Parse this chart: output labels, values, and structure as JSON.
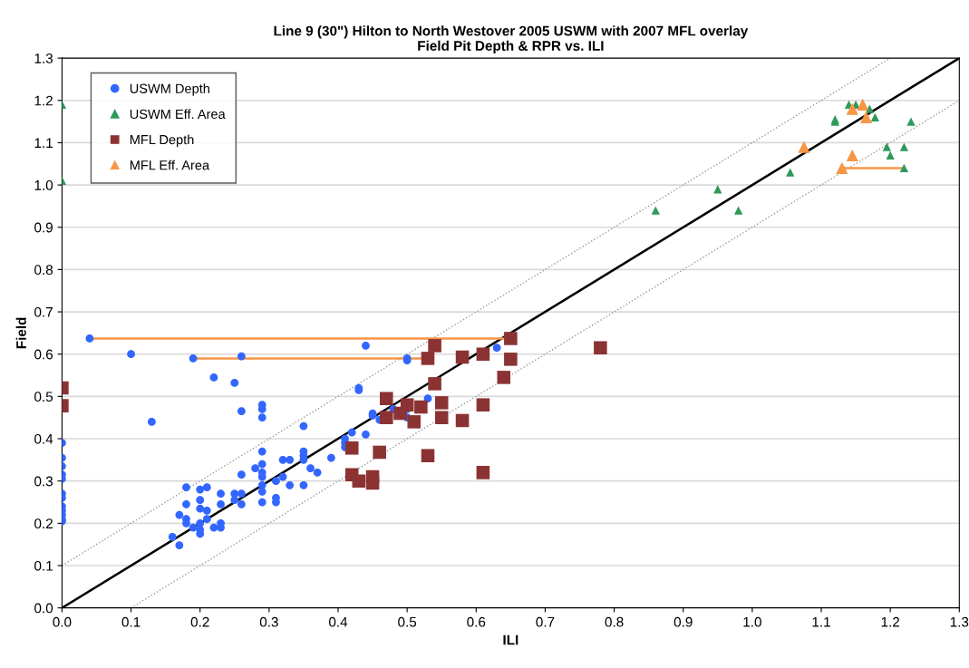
{
  "chart_data": {
    "type": "scatter",
    "title": "Line 9 (30\") Hilton to North Westover 2005 USWM with 2007 MFL overlay\nField Pit Depth & RPR vs. ILI",
    "xlabel": "ILI",
    "ylabel": "Field",
    "xlim": [
      0,
      1.3
    ],
    "ylim": [
      0,
      1.3
    ],
    "xticks": [
      {
        "value": 0,
        "label": "0.0"
      },
      0.1,
      0.2,
      0.3,
      0.4,
      0.5,
      0.6,
      0.7,
      0.8,
      0.9,
      {
        "value": 1,
        "label": "1.0"
      },
      1.1,
      1.2,
      1.3
    ],
    "yticks": [
      {
        "value": 0,
        "label": "0.0"
      },
      0.1,
      0.2,
      0.3,
      0.4,
      0.5,
      0.6,
      0.7,
      0.8,
      0.9,
      {
        "value": 1,
        "label": "1.0"
      },
      1.1,
      1.2,
      1.3
    ],
    "grid": "y",
    "legend": "top left",
    "series": [
      {
        "type": "line",
        "color": "#000000",
        "line_style": "solid",
        "x": [
          0,
          1.3
        ],
        "values": [
          0,
          1.3
        ]
      },
      {
        "type": "line",
        "color": "#999999",
        "line_style": "dotted",
        "x": [
          0,
          1.2
        ],
        "values": [
          0.1,
          1.3
        ]
      },
      {
        "type": "line",
        "color": "#999999",
        "line_style": "dotted",
        "x": [
          0.1,
          1.3
        ],
        "values": [
          0,
          1.2
        ]
      },
      {
        "type": "line",
        "color": "#f79646",
        "line_style": "solid",
        "x": [
          0.04,
          0.65
        ],
        "values": [
          0.637,
          0.637
        ]
      },
      {
        "type": "line",
        "color": "#f79646",
        "line_style": "solid",
        "x": [
          0.19,
          0.53
        ],
        "values": [
          0.59,
          0.59
        ]
      },
      {
        "type": "line",
        "color": "#f79646",
        "line_style": "solid",
        "x": [
          1.22,
          1.13
        ],
        "values": [
          1.04,
          1.04
        ]
      },
      {
        "name": "USWM Depth",
        "marker": "circle",
        "color": "#3366ff",
        "x": [
          0,
          0,
          0,
          0,
          0,
          0,
          0,
          0,
          0,
          0,
          0,
          0,
          0.04,
          0.1,
          0.19,
          0.26,
          0.22,
          0.25,
          0.13,
          0.26,
          0.29,
          0.29,
          0.29,
          0.44,
          0.5,
          0.5,
          0.63,
          0.43,
          0.43,
          0.53,
          0.35,
          0.45,
          0.45,
          0.46,
          0.44,
          0.41,
          0.41,
          0.41,
          0.42,
          0.5,
          0.48,
          0.5,
          0.39,
          0.37,
          0.35,
          0.35,
          0.35,
          0.35,
          0.36,
          0.33,
          0.32,
          0.33,
          0.32,
          0.31,
          0.29,
          0.29,
          0.29,
          0.29,
          0.29,
          0.29,
          0.29,
          0.31,
          0.31,
          0.28,
          0.26,
          0.26,
          0.25,
          0.25,
          0.26,
          0.23,
          0.23,
          0.18,
          0.2,
          0.21,
          0.18,
          0.2,
          0.2,
          0.17,
          0.18,
          0.18,
          0.19,
          0.2,
          0.2,
          0.2,
          0.21,
          0.21,
          0.22,
          0.23,
          0.23,
          0.16,
          0.17
        ],
        "values": [
          0.39,
          0.355,
          0.335,
          0.315,
          0.305,
          0.27,
          0.26,
          0.24,
          0.23,
          0.22,
          0.21,
          0.205,
          0.637,
          0.6,
          0.59,
          0.595,
          0.545,
          0.532,
          0.44,
          0.465,
          0.48,
          0.47,
          0.45,
          0.62,
          0.59,
          0.585,
          0.615,
          0.52,
          0.515,
          0.495,
          0.43,
          0.46,
          0.455,
          0.445,
          0.41,
          0.4,
          0.39,
          0.38,
          0.415,
          0.47,
          0.47,
          0.45,
          0.355,
          0.32,
          0.37,
          0.36,
          0.35,
          0.29,
          0.33,
          0.35,
          0.35,
          0.29,
          0.31,
          0.3,
          0.37,
          0.34,
          0.32,
          0.31,
          0.29,
          0.275,
          0.25,
          0.26,
          0.25,
          0.33,
          0.315,
          0.27,
          0.27,
          0.255,
          0.245,
          0.27,
          0.245,
          0.285,
          0.28,
          0.285,
          0.245,
          0.255,
          0.235,
          0.22,
          0.21,
          0.2,
          0.19,
          0.2,
          0.185,
          0.175,
          0.23,
          0.21,
          0.19,
          0.2,
          0.19,
          0.168,
          0.148
        ]
      },
      {
        "name": "USWM Eff. Area",
        "marker": "triangle",
        "color": "#2e9a5a",
        "x": [
          0,
          0,
          0.86,
          0.95,
          0.98,
          1.055,
          1.12,
          1.12,
          1.14,
          1.15,
          1.17,
          1.178,
          1.23,
          1.195,
          1.2,
          1.22,
          1.22
        ],
        "values": [
          1.19,
          1.01,
          0.94,
          0.99,
          0.94,
          1.03,
          1.15,
          1.155,
          1.19,
          1.19,
          1.18,
          1.16,
          1.15,
          1.09,
          1.07,
          1.09,
          1.04
        ]
      },
      {
        "name": "MFL Depth",
        "marker": "square",
        "color": "#8b3333",
        "x": [
          0,
          0,
          0.54,
          0.53,
          0.58,
          0.61,
          0.65,
          0.65,
          0.64,
          0.54,
          0.47,
          0.49,
          0.5,
          0.52,
          0.55,
          0.47,
          0.51,
          0.55,
          0.58,
          0.61,
          0.78,
          0.42,
          0.46,
          0.53,
          0.42,
          0.43,
          0.45,
          0.45,
          0.61
        ],
        "values": [
          0.52,
          0.478,
          0.62,
          0.59,
          0.593,
          0.6,
          0.637,
          0.588,
          0.545,
          0.53,
          0.495,
          0.46,
          0.48,
          0.475,
          0.485,
          0.45,
          0.44,
          0.45,
          0.443,
          0.48,
          0.615,
          0.378,
          0.368,
          0.36,
          0.315,
          0.3,
          0.31,
          0.295,
          0.32
        ]
      },
      {
        "name": "MFL Eff. Area",
        "marker": "triangle",
        "color": "#f79646",
        "x": [
          1.075,
          1.145,
          1.16,
          1.165,
          1.145,
          1.13
        ],
        "values": [
          1.09,
          1.18,
          1.19,
          1.16,
          1.07,
          1.04
        ]
      }
    ]
  }
}
